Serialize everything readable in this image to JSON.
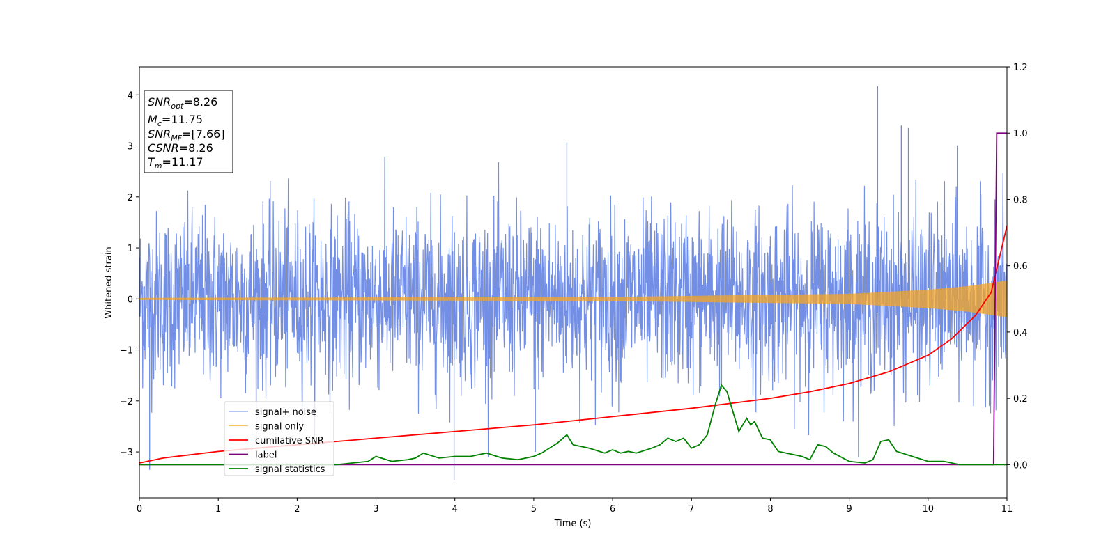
{
  "chart_data": {
    "type": "line",
    "title": "",
    "xlabel": "Time (s)",
    "ylabel": "Whitened strain",
    "xlim": [
      0,
      11
    ],
    "ylim": [
      -3.9,
      4.55
    ],
    "y2lim": [
      -0.1,
      1.2
    ],
    "x_ticks": [
      0,
      1,
      2,
      3,
      4,
      5,
      6,
      7,
      8,
      9,
      10,
      11
    ],
    "y_ticks": [
      -3,
      -2,
      -1,
      0,
      1,
      2,
      3,
      4
    ],
    "y2_ticks": [
      "0.0",
      "0.2",
      "0.4",
      "0.6",
      "0.8",
      "1.0",
      "1.2"
    ],
    "grid": false,
    "legend_placement": "lower-left",
    "annotation": {
      "lines": [
        {
          "base": "SNR",
          "sub": "opt",
          "value": "=8.26"
        },
        {
          "base": "M",
          "sub": "c",
          "value": "=11.75"
        },
        {
          "base": "SNR",
          "sub": "MF",
          "value": "=[7.66]"
        },
        {
          "base": "CSNR",
          "sub": "",
          "value": "=8.26"
        },
        {
          "base": "T",
          "sub": "m",
          "value": "=11.17"
        }
      ]
    },
    "series": [
      {
        "name": "signal+ noise",
        "axis": "left",
        "color": "#5b7be0",
        "description_style": "dense noise",
        "noise_sigma": 0.85,
        "spikes": [
          {
            "x": 9.36,
            "y": 4.17
          },
          {
            "x": 9.66,
            "y": 3.4
          },
          {
            "x": 9.75,
            "y": 3.35
          },
          {
            "x": 5.42,
            "y": 3.07
          },
          {
            "x": 10.37,
            "y": 3.01
          },
          {
            "x": 3.99,
            "y": -3.56
          },
          {
            "x": 0.13,
            "y": -3.35
          },
          {
            "x": 5.02,
            "y": -3.0
          }
        ]
      },
      {
        "name": "signal only",
        "axis": "left",
        "color": "#f5a623",
        "envelope": [
          [
            0,
            0.02
          ],
          [
            6,
            0.04
          ],
          [
            9,
            0.1
          ],
          [
            10,
            0.18
          ],
          [
            10.5,
            0.25
          ],
          [
            11,
            0.36
          ]
        ]
      },
      {
        "name": "cumilative SNR",
        "axis": "right",
        "color": "#ff0000",
        "x": [
          0,
          0.3,
          1,
          2,
          3,
          4,
          5,
          6,
          7,
          8,
          8.5,
          9,
          9.5,
          10,
          10.3,
          10.6,
          10.8,
          11
        ],
        "y": [
          0.005,
          0.02,
          0.04,
          0.06,
          0.08,
          0.1,
          0.12,
          0.145,
          0.17,
          0.2,
          0.22,
          0.245,
          0.28,
          0.33,
          0.38,
          0.45,
          0.52,
          0.72
        ]
      },
      {
        "name": "label",
        "axis": "right",
        "color": "#800080",
        "x": [
          0,
          10.83,
          10.87,
          11
        ],
        "y": [
          0,
          0,
          1.0,
          1.0
        ]
      },
      {
        "name": "signal statistics",
        "axis": "right",
        "color": "#008000",
        "x": [
          0,
          0.5,
          1,
          1.5,
          2,
          2.5,
          2.7,
          2.9,
          3.0,
          3.2,
          3.4,
          3.5,
          3.6,
          3.8,
          4.0,
          4.2,
          4.4,
          4.6,
          4.8,
          5.0,
          5.1,
          5.2,
          5.3,
          5.42,
          5.5,
          5.7,
          5.9,
          6.0,
          6.1,
          6.2,
          6.3,
          6.5,
          6.6,
          6.7,
          6.8,
          6.9,
          7.0,
          7.1,
          7.2,
          7.3,
          7.38,
          7.45,
          7.5,
          7.6,
          7.65,
          7.7,
          7.75,
          7.8,
          7.9,
          8.0,
          8.1,
          8.2,
          8.4,
          8.5,
          8.6,
          8.7,
          8.8,
          9.0,
          9.2,
          9.3,
          9.4,
          9.5,
          9.6,
          9.8,
          10.0,
          10.2,
          10.4,
          10.6,
          10.8,
          11.0
        ],
        "y": [
          0.0,
          0.0,
          0.0,
          0.0,
          0.0,
          0.0,
          0.005,
          0.01,
          0.025,
          0.01,
          0.015,
          0.02,
          0.035,
          0.02,
          0.025,
          0.025,
          0.035,
          0.02,
          0.015,
          0.025,
          0.035,
          0.05,
          0.065,
          0.09,
          0.06,
          0.05,
          0.035,
          0.045,
          0.035,
          0.04,
          0.035,
          0.05,
          0.06,
          0.08,
          0.07,
          0.08,
          0.05,
          0.06,
          0.09,
          0.18,
          0.24,
          0.22,
          0.18,
          0.1,
          0.12,
          0.14,
          0.12,
          0.13,
          0.08,
          0.075,
          0.04,
          0.035,
          0.025,
          0.015,
          0.06,
          0.055,
          0.035,
          0.01,
          0.005,
          0.015,
          0.07,
          0.075,
          0.04,
          0.025,
          0.01,
          0.01,
          0.0,
          0.0,
          0.0,
          0.0
        ]
      }
    ]
  }
}
